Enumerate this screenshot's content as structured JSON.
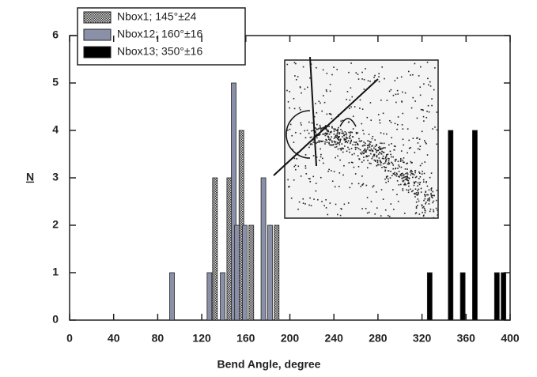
{
  "chart_data": {
    "type": "bar",
    "x_label": "Bend Angle, degree",
    "y_label": "N",
    "xlim": [
      0,
      400
    ],
    "xticks": [
      0,
      40,
      80,
      120,
      160,
      200,
      240,
      280,
      320,
      360,
      400
    ],
    "ylim": [
      0,
      6
    ],
    "yticks": [
      0,
      1,
      2,
      3,
      4,
      5,
      6
    ],
    "series": [
      {
        "name": "Nbox1;  145°±24",
        "color": "#555555",
        "x": [
          132,
          145,
          156,
          165,
          188
        ],
        "values": [
          3,
          3,
          4,
          2,
          2
        ]
      },
      {
        "name": "Nbox12; 160°±16",
        "color": "#8a90a8",
        "x": [
          93,
          127,
          139,
          149,
          152,
          159,
          176,
          182
        ],
        "values": [
          1,
          1,
          1,
          5,
          2,
          2,
          3,
          2
        ]
      },
      {
        "name": "Nbox13; 350°±16",
        "color": "#000000",
        "x": [
          327,
          346,
          357,
          368,
          388,
          394
        ],
        "values": [
          1,
          4,
          1,
          4,
          1,
          1
        ]
      }
    ]
  }
}
